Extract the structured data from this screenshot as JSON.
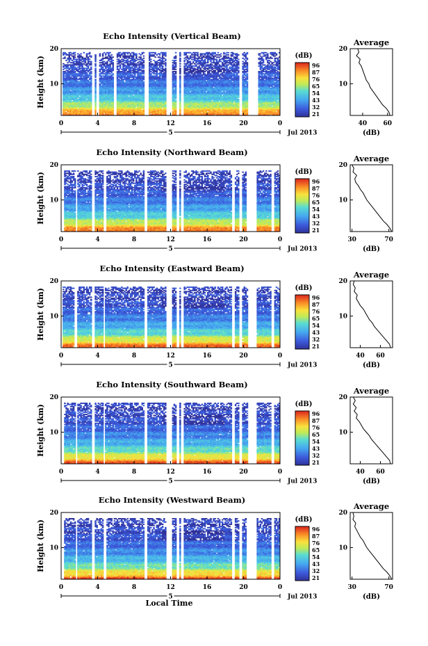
{
  "chart_data": [
    {
      "type": "heatmap",
      "title": "Echo Intensity (Vertical Beam)",
      "ylabel": "Height (km)",
      "x_ticks": [
        "0",
        "4",
        "8",
        "12",
        "16",
        "20",
        "0"
      ],
      "y_ticks": [
        "20",
        "10"
      ],
      "date_marker": "5",
      "date_label": "Jul 2013",
      "xlim": [
        0,
        24
      ],
      "ylim": [
        1,
        20
      ],
      "colorbar": {
        "unit": "(dB)",
        "ticks": [
          "96",
          "87",
          "76",
          "65",
          "54",
          "43",
          "32",
          "21"
        ],
        "range": [
          21,
          96
        ]
      },
      "profile": {
        "title": "Average",
        "xlabel": "(dB)",
        "x_ticks": [
          "40",
          "60"
        ],
        "y_ticks": [
          "20",
          "10"
        ],
        "xlim": [
          30,
          64
        ],
        "ylim": [
          1,
          20
        ],
        "height": [
          1,
          2,
          3,
          4,
          5,
          6,
          7,
          8,
          9,
          10,
          11,
          12,
          13,
          14,
          15,
          16,
          17,
          18,
          19,
          20
        ],
        "values": [
          62,
          61,
          59,
          56,
          54,
          52,
          50,
          48,
          46,
          45,
          43,
          42,
          41,
          40,
          39,
          37,
          38,
          35,
          37,
          36
        ]
      },
      "gaps_hours": [
        [
          0,
          0.2
        ],
        [
          3.3,
          3.7
        ],
        [
          3.9,
          4.2
        ],
        [
          5.7,
          6.0
        ],
        [
          9.2,
          9.6
        ],
        [
          11.6,
          12.1
        ],
        [
          12.6,
          12.9
        ],
        [
          13.2,
          13.5
        ],
        [
          19.6,
          19.8
        ],
        [
          20.5,
          21.6
        ]
      ]
    },
    {
      "type": "heatmap",
      "title": "Echo Intensity (Northward Beam)",
      "ylabel": "Height (km)",
      "x_ticks": [
        "0",
        "4",
        "8",
        "12",
        "16",
        "20",
        "0"
      ],
      "y_ticks": [
        "20",
        "10"
      ],
      "date_marker": "5",
      "date_label": "Jul 2013",
      "xlim": [
        0,
        24
      ],
      "ylim": [
        1,
        20
      ],
      "colorbar": {
        "unit": "(dB)",
        "ticks": [
          "96",
          "87",
          "76",
          "65",
          "54",
          "43",
          "32",
          "21"
        ],
        "range": [
          21,
          96
        ]
      },
      "profile": {
        "title": "Average",
        "xlabel": "(dB)",
        "x_ticks": [
          "30",
          "70"
        ],
        "y_ticks": [
          "20",
          "10"
        ],
        "xlim": [
          28,
          74
        ],
        "ylim": [
          1,
          20
        ],
        "height": [
          1,
          2,
          3,
          4,
          5,
          6,
          7,
          8,
          9,
          10,
          11,
          12,
          13,
          14,
          15,
          16,
          17,
          18,
          19,
          20
        ],
        "values": [
          73,
          71,
          68,
          64,
          61,
          58,
          55,
          52,
          49,
          46,
          44,
          42,
          39,
          37,
          34,
          33,
          35,
          31,
          32,
          30
        ]
      },
      "gaps_hours": [
        [
          0,
          0.3
        ],
        [
          1.6,
          1.8
        ],
        [
          3.3,
          3.6
        ],
        [
          4.7,
          4.9
        ],
        [
          9.2,
          9.5
        ],
        [
          11.6,
          12.1
        ],
        [
          12.6,
          12.9
        ],
        [
          13.2,
          13.5
        ],
        [
          18.8,
          19.0
        ],
        [
          19.6,
          19.8
        ],
        [
          20.4,
          21.5
        ],
        [
          23.0,
          23.3
        ]
      ]
    },
    {
      "type": "heatmap",
      "title": "Echo Intensity (Eastward Beam)",
      "ylabel": "Height (km)",
      "x_ticks": [
        "0",
        "4",
        "8",
        "12",
        "16",
        "20",
        "0"
      ],
      "y_ticks": [
        "20",
        "10"
      ],
      "date_marker": "5",
      "date_label": "Jul 2013",
      "xlim": [
        0,
        24
      ],
      "ylim": [
        1,
        20
      ],
      "colorbar": {
        "unit": "(dB)",
        "ticks": [
          "96",
          "87",
          "76",
          "65",
          "54",
          "43",
          "32",
          "21"
        ],
        "range": [
          21,
          96
        ]
      },
      "profile": {
        "title": "Average",
        "xlabel": "(dB)",
        "x_ticks": [
          "40",
          "60"
        ],
        "y_ticks": [
          "20",
          "10"
        ],
        "xlim": [
          30,
          72
        ],
        "ylim": [
          1,
          20
        ],
        "height": [
          1,
          2,
          3,
          4,
          5,
          6,
          7,
          8,
          9,
          10,
          11,
          12,
          13,
          14,
          15,
          16,
          17,
          18,
          19,
          20
        ],
        "values": [
          70,
          69,
          66,
          63,
          60,
          57,
          54,
          52,
          49,
          47,
          45,
          43,
          40,
          38,
          36,
          37,
          34,
          35,
          33,
          34
        ]
      },
      "gaps_hours": [
        [
          0,
          0.2
        ],
        [
          1.5,
          1.7
        ],
        [
          3.3,
          3.6
        ],
        [
          4.6,
          4.8
        ],
        [
          9.2,
          9.5
        ],
        [
          11.6,
          12.1
        ],
        [
          12.6,
          12.9
        ],
        [
          13.2,
          13.5
        ],
        [
          18.8,
          19.0
        ],
        [
          19.6,
          19.8
        ],
        [
          20.5,
          21.5
        ],
        [
          23.0,
          23.3
        ]
      ]
    },
    {
      "type": "heatmap",
      "title": "Echo Intensity (Southward Beam)",
      "ylabel": "Height (km)",
      "x_ticks": [
        "0",
        "4",
        "8",
        "12",
        "16",
        "20",
        "0"
      ],
      "y_ticks": [
        "20",
        "10"
      ],
      "date_marker": "5",
      "date_label": "Jul 2013",
      "xlim": [
        0,
        24
      ],
      "ylim": [
        1,
        20
      ],
      "colorbar": {
        "unit": "(dB)",
        "ticks": [
          "96",
          "87",
          "76",
          "65",
          "54",
          "43",
          "32",
          "21"
        ],
        "range": [
          21,
          96
        ]
      },
      "profile": {
        "title": "Average",
        "xlabel": "(dB)",
        "x_ticks": [
          "40",
          "60"
        ],
        "y_ticks": [
          "20",
          "10"
        ],
        "xlim": [
          30,
          72
        ],
        "ylim": [
          1,
          20
        ],
        "height": [
          1,
          2,
          3,
          4,
          5,
          6,
          7,
          8,
          9,
          10,
          11,
          12,
          13,
          14,
          15,
          16,
          17,
          18,
          19,
          20
        ],
        "values": [
          70,
          69,
          66,
          63,
          60,
          57,
          54,
          51,
          49,
          46,
          43,
          41,
          39,
          36,
          37,
          34,
          36,
          33,
          35,
          33
        ]
      },
      "gaps_hours": [
        [
          0,
          0.3
        ],
        [
          1.6,
          1.8
        ],
        [
          3.3,
          3.6
        ],
        [
          4.6,
          4.8
        ],
        [
          9.2,
          9.5
        ],
        [
          11.6,
          12.1
        ],
        [
          12.6,
          12.9
        ],
        [
          13.2,
          13.5
        ],
        [
          18.8,
          19.0
        ],
        [
          19.6,
          19.8
        ],
        [
          20.5,
          21.5
        ],
        [
          23.0,
          23.3
        ]
      ]
    },
    {
      "type": "heatmap",
      "title": "Echo Intensity (Westward Beam)",
      "ylabel": "Height (km)",
      "x_ticks": [
        "0",
        "4",
        "8",
        "12",
        "16",
        "20",
        "0"
      ],
      "y_ticks": [
        "20",
        "10"
      ],
      "date_marker": "5",
      "date_label": "Jul 2013",
      "xlabel": "Local Time",
      "xlim": [
        0,
        24
      ],
      "ylim": [
        1,
        20
      ],
      "colorbar": {
        "unit": "(dB)",
        "ticks": [
          "96",
          "87",
          "76",
          "65",
          "54",
          "43",
          "32",
          "21"
        ],
        "range": [
          21,
          96
        ]
      },
      "profile": {
        "title": "Average",
        "xlabel": "(dB)",
        "x_ticks": [
          "30",
          "70"
        ],
        "y_ticks": [
          "20",
          "10"
        ],
        "xlim": [
          28,
          74
        ],
        "ylim": [
          1,
          20
        ],
        "height": [
          1,
          2,
          3,
          4,
          5,
          6,
          7,
          8,
          9,
          10,
          11,
          12,
          13,
          14,
          15,
          16,
          17,
          18,
          19,
          20
        ],
        "values": [
          73,
          71,
          68,
          64,
          61,
          58,
          55,
          52,
          49,
          46,
          44,
          42,
          39,
          37,
          35,
          33,
          34,
          31,
          32,
          31
        ]
      },
      "gaps_hours": [
        [
          0,
          0.3
        ],
        [
          1.6,
          1.8
        ],
        [
          3.3,
          3.6
        ],
        [
          4.7,
          4.9
        ],
        [
          9.2,
          9.5
        ],
        [
          11.6,
          12.1
        ],
        [
          12.6,
          12.9
        ],
        [
          13.2,
          13.5
        ],
        [
          18.8,
          19.0
        ],
        [
          19.6,
          19.8
        ],
        [
          20.4,
          21.5
        ],
        [
          23.0,
          23.3
        ]
      ]
    }
  ]
}
